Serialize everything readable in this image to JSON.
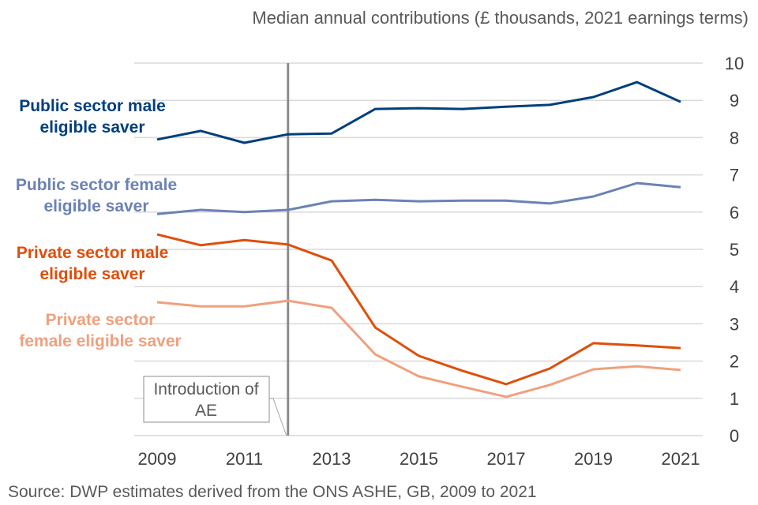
{
  "chart_data": {
    "type": "line",
    "title": "Median annual contributions (£ thousands, 2021 earnings terms)",
    "xlabel": "",
    "ylabel": "Median annual contributions (£ thousands, 2021 earnings terms)",
    "x": [
      2009,
      2010,
      2011,
      2012,
      2013,
      2014,
      2015,
      2016,
      2017,
      2018,
      2019,
      2020,
      2021
    ],
    "x_tick_labels": [
      "2009",
      "2011",
      "2013",
      "2015",
      "2017",
      "2019",
      "2021"
    ],
    "y_tick_labels": [
      "0",
      "1",
      "2",
      "3",
      "4",
      "5",
      "6",
      "7",
      "8",
      "9",
      "10"
    ],
    "ylim": [
      0,
      10
    ],
    "xlim": [
      2009,
      2021
    ],
    "grid": "horizontal",
    "y_axis_side": "right",
    "legend": "inline-left",
    "series": [
      {
        "name": "Public sector male eligible saver",
        "label_lines": [
          "Public sector male",
          "eligible saver"
        ],
        "color": "#003F7D",
        "values": [
          7.95,
          8.18,
          7.86,
          8.09,
          8.11,
          8.77,
          8.79,
          8.77,
          8.83,
          8.88,
          9.09,
          9.49,
          8.96
        ]
      },
      {
        "name": "Public sector female eligible saver",
        "label_lines": [
          "Public sector female",
          "eligible saver"
        ],
        "color": "#6B82B4",
        "values": [
          5.95,
          6.06,
          6.0,
          6.06,
          6.29,
          6.33,
          6.29,
          6.31,
          6.31,
          6.23,
          6.42,
          6.78,
          6.67
        ]
      },
      {
        "name": "Private sector male eligible saver",
        "label_lines": [
          "Private sector male",
          "eligible saver"
        ],
        "color": "#E04E0A",
        "values": [
          5.4,
          5.11,
          5.25,
          5.13,
          4.7,
          2.9,
          2.14,
          1.74,
          1.38,
          1.8,
          2.48,
          2.42,
          2.35
        ]
      },
      {
        "name": "Private sector female eligible saver",
        "label_lines": [
          "Private sector",
          "female eligible saver"
        ],
        "color": "#F0A07E",
        "values": [
          3.58,
          3.47,
          3.47,
          3.62,
          3.43,
          2.18,
          1.59,
          1.31,
          1.04,
          1.36,
          1.78,
          1.86,
          1.76
        ]
      }
    ],
    "annotations": [
      {
        "type": "vertical-line",
        "x": 2012,
        "color": "#8C8C8C",
        "text_lines": [
          "Introduction of",
          "AE"
        ]
      }
    ],
    "source": "Source: DWP estimates derived from the ONS ASHE, GB, 2009 to 2021"
  }
}
